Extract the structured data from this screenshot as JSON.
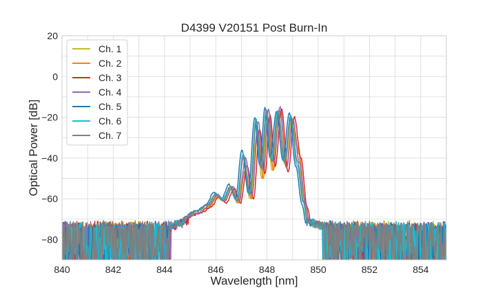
{
  "chart_data": {
    "type": "line",
    "title": "D4399 V20151 Post Burn-In",
    "xlabel": "Wavelength [nm]",
    "ylabel": "Optical Power [dB]",
    "xlim": [
      840,
      855
    ],
    "ylim": [
      -90,
      20
    ],
    "xticks": [
      840,
      842,
      844,
      846,
      848,
      850,
      852,
      854
    ],
    "yticks": [
      20,
      0,
      -20,
      -40,
      -60,
      -80
    ],
    "grid": true,
    "legend_position": "top-left",
    "noise_floor_db": -72,
    "series": [
      {
        "name": "Ch. 1",
        "color": "#bcbd22",
        "shift": 0.0,
        "points": [
          [
            844.8,
            -69
          ],
          [
            845.3,
            -67
          ],
          [
            845.7,
            -64
          ],
          [
            846.0,
            -59
          ],
          [
            846.3,
            -61
          ],
          [
            846.6,
            -55
          ],
          [
            846.85,
            -62
          ],
          [
            847.1,
            -47
          ],
          [
            847.35,
            -60
          ],
          [
            847.6,
            -29
          ],
          [
            847.8,
            -50
          ],
          [
            848.0,
            -22
          ],
          [
            848.2,
            -46
          ],
          [
            848.45,
            -18
          ],
          [
            848.7,
            -43
          ],
          [
            848.95,
            -22
          ],
          [
            849.2,
            -35
          ],
          [
            849.45,
            -60
          ],
          [
            849.6,
            -72
          ]
        ]
      },
      {
        "name": "Ch. 2",
        "color": "#ff7f0e",
        "shift": 0.05,
        "points": [
          [
            844.8,
            -69
          ],
          [
            845.3,
            -67
          ],
          [
            845.7,
            -64
          ],
          [
            846.0,
            -59
          ],
          [
            846.3,
            -61
          ],
          [
            846.6,
            -55
          ],
          [
            846.85,
            -62
          ],
          [
            847.1,
            -46
          ],
          [
            847.35,
            -60
          ],
          [
            847.6,
            -27
          ],
          [
            847.8,
            -50
          ],
          [
            848.0,
            -21
          ],
          [
            848.2,
            -46
          ],
          [
            848.45,
            -17
          ],
          [
            848.7,
            -44
          ],
          [
            848.95,
            -21
          ],
          [
            849.2,
            -38
          ],
          [
            849.45,
            -62
          ],
          [
            849.6,
            -72
          ]
        ]
      },
      {
        "name": "Ch. 3",
        "color": "#d62728",
        "shift": 0.12,
        "points": [
          [
            844.8,
            -69
          ],
          [
            845.3,
            -67
          ],
          [
            845.7,
            -64
          ],
          [
            846.0,
            -59
          ],
          [
            846.3,
            -62
          ],
          [
            846.6,
            -55
          ],
          [
            846.85,
            -62
          ],
          [
            847.1,
            -44
          ],
          [
            847.35,
            -60
          ],
          [
            847.6,
            -26
          ],
          [
            847.8,
            -48
          ],
          [
            848.0,
            -19
          ],
          [
            848.2,
            -44
          ],
          [
            848.45,
            -16
          ],
          [
            848.7,
            -47
          ],
          [
            848.95,
            -20
          ],
          [
            849.2,
            -40
          ],
          [
            849.45,
            -64
          ],
          [
            849.6,
            -72
          ]
        ]
      },
      {
        "name": "Ch. 4",
        "color": "#9467bd",
        "shift": 0.06,
        "points": [
          [
            844.8,
            -69
          ],
          [
            845.3,
            -67
          ],
          [
            845.7,
            -63
          ],
          [
            846.0,
            -58
          ],
          [
            846.3,
            -61
          ],
          [
            846.6,
            -54
          ],
          [
            846.85,
            -61
          ],
          [
            847.1,
            -40
          ],
          [
            847.35,
            -58
          ],
          [
            847.6,
            -22
          ],
          [
            847.8,
            -46
          ],
          [
            848.0,
            -16
          ],
          [
            848.2,
            -42
          ],
          [
            848.45,
            -15
          ],
          [
            848.7,
            -45
          ],
          [
            848.95,
            -21
          ],
          [
            849.2,
            -42
          ],
          [
            849.45,
            -63
          ],
          [
            849.6,
            -72
          ]
        ]
      },
      {
        "name": "Ch. 5",
        "color": "#1f77b4",
        "shift": -0.08,
        "points": [
          [
            844.8,
            -69
          ],
          [
            845.3,
            -66
          ],
          [
            845.7,
            -63
          ],
          [
            846.0,
            -57
          ],
          [
            846.3,
            -60
          ],
          [
            846.6,
            -53
          ],
          [
            846.85,
            -60
          ],
          [
            847.1,
            -36
          ],
          [
            847.35,
            -57
          ],
          [
            847.6,
            -20
          ],
          [
            847.8,
            -44
          ],
          [
            848.0,
            -15
          ],
          [
            848.2,
            -40
          ],
          [
            848.45,
            -17
          ],
          [
            848.7,
            -41
          ],
          [
            848.95,
            -18
          ],
          [
            849.2,
            -44
          ],
          [
            849.45,
            -63
          ],
          [
            849.6,
            -72
          ]
        ]
      },
      {
        "name": "Ch. 6",
        "color": "#17becf",
        "shift": -0.03,
        "points": [
          [
            844.8,
            -69
          ],
          [
            845.3,
            -66
          ],
          [
            845.7,
            -63
          ],
          [
            846.0,
            -58
          ],
          [
            846.3,
            -60
          ],
          [
            846.6,
            -54
          ],
          [
            846.85,
            -61
          ],
          [
            847.1,
            -38
          ],
          [
            847.35,
            -58
          ],
          [
            847.6,
            -21
          ],
          [
            847.8,
            -45
          ],
          [
            848.0,
            -16
          ],
          [
            848.2,
            -41
          ],
          [
            848.45,
            -17
          ],
          [
            848.7,
            -42
          ],
          [
            848.95,
            -19
          ],
          [
            849.2,
            -43
          ],
          [
            849.45,
            -62
          ],
          [
            849.6,
            -72
          ]
        ]
      },
      {
        "name": "Ch. 7",
        "color": "#7f7f7f",
        "shift": -0.01,
        "points": [
          [
            844.8,
            -69
          ],
          [
            845.3,
            -66
          ],
          [
            845.7,
            -63
          ],
          [
            846.0,
            -58
          ],
          [
            846.3,
            -61
          ],
          [
            846.6,
            -54
          ],
          [
            846.85,
            -61
          ],
          [
            847.1,
            -39
          ],
          [
            847.35,
            -58
          ],
          [
            847.6,
            -22
          ],
          [
            847.8,
            -45
          ],
          [
            848.0,
            -17
          ],
          [
            848.2,
            -42
          ],
          [
            848.45,
            -18
          ],
          [
            848.7,
            -42
          ],
          [
            848.95,
            -20
          ],
          [
            849.2,
            -42
          ],
          [
            849.45,
            -62
          ],
          [
            849.6,
            -72
          ]
        ]
      }
    ]
  }
}
